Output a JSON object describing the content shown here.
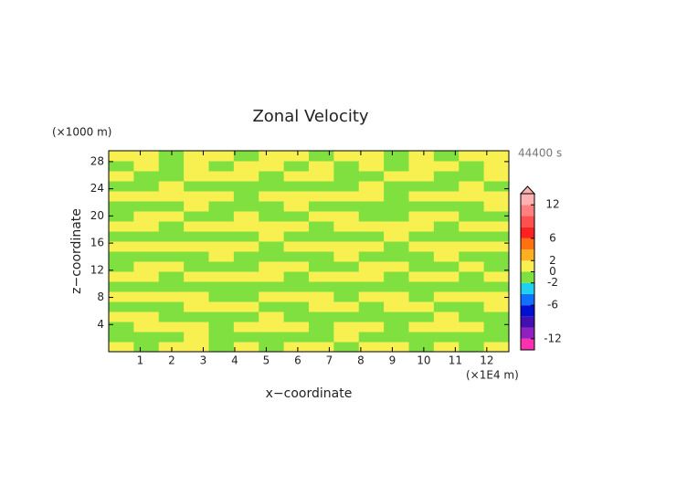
{
  "chart_data": {
    "type": "heatmap",
    "title": "Zonal Velocity",
    "x_label": "x−coordinate",
    "y_label": "z−coordinate",
    "x_unit": "(×1E4 m)",
    "y_unit": "(×1000 m)",
    "annotation": "44400 s",
    "xlim": [
      0,
      12.7
    ],
    "ylim": [
      0,
      29.6
    ],
    "xticks": [
      1,
      2,
      3,
      4,
      5,
      6,
      7,
      8,
      9,
      10,
      11,
      12
    ],
    "yticks": [
      4,
      8,
      12,
      16,
      20,
      24,
      28
    ],
    "z": [
      [
        1,
        -1,
        1,
        1,
        -1,
        1,
        -1,
        1,
        1,
        -1,
        1,
        1,
        -1,
        1,
        -1,
        1
      ],
      [
        -1,
        -1,
        -1,
        1,
        -1,
        -1,
        -1,
        -1,
        -1,
        1,
        -1,
        -1,
        -1,
        -1,
        -1,
        -1
      ],
      [
        -1,
        1,
        1,
        1,
        -1,
        1,
        1,
        1,
        -1,
        1,
        1,
        -1,
        1,
        1,
        1,
        -1
      ],
      [
        1,
        1,
        -1,
        -1,
        -1,
        -1,
        1,
        -1,
        -1,
        -1,
        -1,
        -1,
        -1,
        1,
        -1,
        -1
      ],
      [
        -1,
        -1,
        -1,
        1,
        1,
        1,
        -1,
        -1,
        1,
        1,
        -1,
        1,
        1,
        -1,
        -1,
        1
      ],
      [
        1,
        1,
        1,
        1,
        -1,
        -1,
        1,
        1,
        1,
        -1,
        1,
        1,
        -1,
        1,
        1,
        1
      ],
      [
        -1,
        -1,
        -1,
        -1,
        -1,
        -1,
        -1,
        -1,
        -1,
        -1,
        -1,
        -1,
        -1,
        -1,
        -1,
        -1
      ],
      [
        1,
        1,
        -1,
        1,
        1,
        1,
        1,
        -1,
        1,
        1,
        1,
        -1,
        1,
        1,
        -1,
        1
      ],
      [
        -1,
        1,
        1,
        -1,
        -1,
        -1,
        1,
        1,
        -1,
        -1,
        1,
        1,
        -1,
        -1,
        1,
        -1
      ],
      [
        -1,
        -1,
        -1,
        -1,
        1,
        -1,
        -1,
        -1,
        -1,
        1,
        -1,
        -1,
        -1,
        1,
        -1,
        -1
      ],
      [
        1,
        1,
        1,
        1,
        1,
        1,
        -1,
        1,
        1,
        1,
        1,
        -1,
        1,
        1,
        1,
        1
      ],
      [
        -1,
        -1,
        -1,
        -1,
        -1,
        -1,
        1,
        -1,
        -1,
        -1,
        -1,
        1,
        -1,
        -1,
        -1,
        -1
      ],
      [
        1,
        1,
        -1,
        1,
        1,
        1,
        1,
        1,
        -1,
        1,
        1,
        1,
        1,
        -1,
        1,
        1
      ],
      [
        -1,
        1,
        1,
        -1,
        -1,
        1,
        -1,
        -1,
        1,
        1,
        -1,
        -1,
        1,
        1,
        -1,
        -1
      ],
      [
        -1,
        -1,
        -1,
        1,
        -1,
        -1,
        -1,
        1,
        -1,
        -1,
        -1,
        -1,
        -1,
        -1,
        -1,
        1
      ],
      [
        1,
        1,
        1,
        1,
        1,
        -1,
        1,
        1,
        1,
        1,
        1,
        -1,
        1,
        1,
        1,
        1
      ],
      [
        -1,
        -1,
        1,
        -1,
        -1,
        -1,
        -1,
        -1,
        -1,
        -1,
        1,
        -1,
        -1,
        -1,
        1,
        -1
      ],
      [
        1,
        -1,
        -1,
        1,
        1,
        1,
        -1,
        1,
        1,
        -1,
        -1,
        1,
        1,
        -1,
        -1,
        1
      ],
      [
        -1,
        1,
        -1,
        1,
        -1,
        1,
        1,
        -1,
        1,
        -1,
        1,
        -1,
        1,
        1,
        -1,
        1
      ],
      [
        1,
        1,
        -1,
        1,
        1,
        -1,
        1,
        1,
        -1,
        1,
        1,
        -1,
        1,
        -1,
        1,
        1
      ]
    ],
    "colorbar": {
      "levels": [
        -14,
        -12,
        -10,
        -8,
        -6,
        -4,
        -2,
        0,
        2,
        4,
        6,
        8,
        10,
        12,
        14
      ],
      "colors": [
        "#ff30b0",
        "#9020c0",
        "#4010b0",
        "#0010d0",
        "#1070ff",
        "#20d0f0",
        "#80e040",
        "#f8f050",
        "#ffb020",
        "#ff7010",
        "#ff2020",
        "#ff5050",
        "#ff8080",
        "#ffb0b0"
      ],
      "ticks": [
        -12,
        -6,
        -2,
        0,
        2,
        6,
        12
      ]
    }
  }
}
